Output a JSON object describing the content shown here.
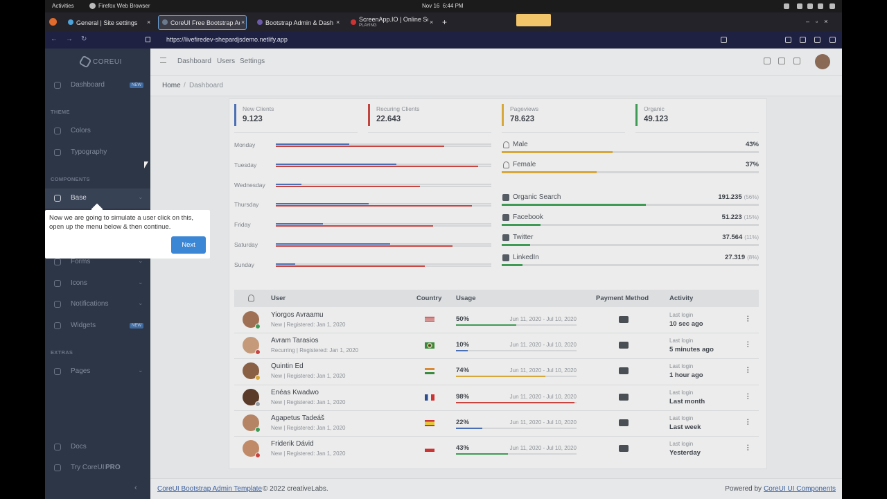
{
  "topbar": {
    "activities": "Activities",
    "app": "Firefox Web Browser",
    "clock": "Nov 16  6:44 PM"
  },
  "tabs": [
    {
      "title": "General | Site settings"
    },
    {
      "title": "CoreUI Free Bootstrap Ad"
    },
    {
      "title": "Bootstrap Admin & Dash"
    },
    {
      "title": "ScreenApp.IO | Online Sc",
      "status": "PLAYING"
    }
  ],
  "url": "https://livefiredev-shepardjsdemo.netlify.app",
  "sidebar": {
    "brand": "COREUI",
    "items": [
      {
        "label": "Dashboard",
        "badge": "NEW"
      },
      {
        "heading": "THEME"
      },
      {
        "label": "Colors"
      },
      {
        "label": "Typography"
      },
      {
        "heading": "COMPONENTS"
      },
      {
        "label": "Base"
      },
      {
        "label": "Forms"
      },
      {
        "label": "Icons"
      },
      {
        "label": "Notifications"
      },
      {
        "label": "Widgets",
        "badge": "NEW"
      },
      {
        "heading": "EXTRAS"
      },
      {
        "label": "Pages"
      },
      {
        "label": "Docs"
      }
    ],
    "pro_prefix": "Try CoreUI",
    "pro_suffix": "PRO"
  },
  "header": {
    "nav": [
      "Dashboard",
      "Users",
      "Settings"
    ]
  },
  "breadcrumb": {
    "home": "Home",
    "separator": "/",
    "current": "Dashboard"
  },
  "stats": [
    {
      "label": "New Clients",
      "value": "9.123"
    },
    {
      "label": "Recuring Clients",
      "value": "22.643"
    },
    {
      "label": "Pageviews",
      "value": "78.623"
    },
    {
      "label": "Organic",
      "value": "49.123"
    }
  ],
  "weekdays": [
    {
      "day": "Monday",
      "new": 34,
      "recurring": 78
    },
    {
      "day": "Tuesday",
      "new": 56,
      "recurring": 94
    },
    {
      "day": "Wednesday",
      "new": 12,
      "recurring": 67
    },
    {
      "day": "Thursday",
      "new": 43,
      "recurring": 91
    },
    {
      "day": "Friday",
      "new": 22,
      "recurring": 73
    },
    {
      "day": "Saturday",
      "new": 53,
      "recurring": 82
    },
    {
      "day": "Sunday",
      "new": 9,
      "recurring": 69
    }
  ],
  "gender": [
    {
      "label": "Male",
      "value": 43,
      "value_label": "43%"
    },
    {
      "label": "Female",
      "value": 37,
      "value_label": "37%"
    }
  ],
  "traffic": [
    {
      "label": "Organic Search",
      "value": "191.235",
      "percent": 56,
      "percent_label": "(56%)"
    },
    {
      "label": "Facebook",
      "value": "51.223",
      "percent": 15,
      "percent_label": "(15%)"
    },
    {
      "label": "Twitter",
      "value": "37.564",
      "percent": 11,
      "percent_label": "(11%)"
    },
    {
      "label": "LinkedIn",
      "value": "27.319",
      "percent": 8,
      "percent_label": "(8%)"
    }
  ],
  "table": {
    "columns": [
      "User",
      "Country",
      "Usage",
      "Payment Method",
      "Activity"
    ],
    "rows": [
      {
        "name": "Yiorgos Avraamu",
        "meta": "New | Registered: Jan 1, 2020",
        "usage": 50,
        "usage_label": "50%",
        "period": "Jun 11, 2020 - Jul 10, 2020",
        "last_label": "Last login",
        "last": "10 sec ago"
      },
      {
        "name": "Avram Tarasios",
        "meta": "Recurring | Registered: Jan 1, 2020",
        "usage": 10,
        "usage_label": "10%",
        "period": "Jun 11, 2020 - Jul 10, 2020",
        "last_label": "Last login",
        "last": "5 minutes ago"
      },
      {
        "name": "Quintin Ed",
        "meta": "New | Registered: Jan 1, 2020",
        "usage": 74,
        "usage_label": "74%",
        "period": "Jun 11, 2020 - Jul 10, 2020",
        "last_label": "Last login",
        "last": "1 hour ago"
      },
      {
        "name": "Enéas Kwadwo",
        "meta": "New | Registered: Jan 1, 2020",
        "usage": 98,
        "usage_label": "98%",
        "period": "Jun 11, 2020 - Jul 10, 2020",
        "last_label": "Last login",
        "last": "Last month"
      },
      {
        "name": "Agapetus Tadeáš",
        "meta": "New | Registered: Jan 1, 2020",
        "usage": 22,
        "usage_label": "22%",
        "period": "Jun 11, 2020 - Jul 10, 2020",
        "last_label": "Last login",
        "last": "Last week"
      },
      {
        "name": "Friderik Dávid",
        "meta": "New | Registered: Jan 1, 2020",
        "usage": 43,
        "usage_label": "43%",
        "period": "Jun 11, 2020 - Jul 10, 2020",
        "last_label": "Last login",
        "last": "Yesterday"
      }
    ]
  },
  "footer": {
    "link": "CoreUI Bootstrap Admin Template",
    "copyright": "© 2022 creativeLabs.",
    "powered": "Powered by",
    "powered_link": "CoreUI UI Components"
  },
  "tour": {
    "text": "Now we are going to simulate a user click on this, open up the menu below & then continue.",
    "button": "Next"
  }
}
